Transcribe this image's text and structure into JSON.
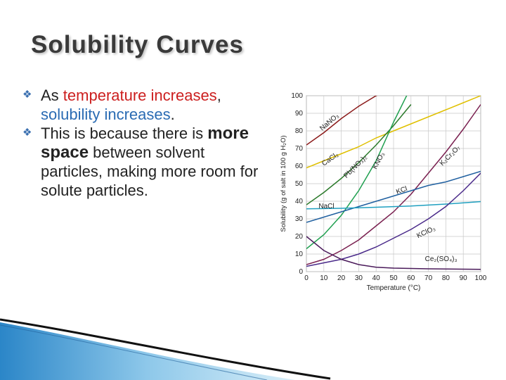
{
  "slide": {
    "title": "Solubility Curves",
    "bullets": [
      {
        "pre": "As ",
        "red": "temperature increases",
        "post": ",",
        "blue": "solubility increases",
        "end": "."
      },
      {
        "pre": "This is because there is ",
        "bold": "more space",
        "post": " between solvent particles, making more room for solute particles."
      }
    ],
    "accent_color": "#3a6fb0",
    "bullet_icon": "diamond-bullet-icon"
  },
  "chart_data": {
    "type": "line",
    "title": "",
    "xlabel": "Temperature (°C)",
    "ylabel": "Solubility (g of salt in 100 g H₂O)",
    "xlim": [
      0,
      100
    ],
    "ylim": [
      0,
      100
    ],
    "x_ticks": [
      0,
      10,
      20,
      30,
      40,
      50,
      60,
      70,
      80,
      90,
      100
    ],
    "y_ticks": [
      0,
      10,
      20,
      30,
      40,
      50,
      60,
      70,
      80,
      90,
      100
    ],
    "grid": true,
    "series": [
      {
        "name": "NaNO₃",
        "color": "#8b1a1a",
        "x": [
          0,
          10,
          20,
          30,
          40,
          50
        ],
        "y": [
          72,
          79,
          87,
          94,
          100,
          104
        ]
      },
      {
        "name": "CaCl₂",
        "color": "#e0c000",
        "x": [
          0,
          10,
          20,
          30,
          40,
          50,
          60,
          70,
          80,
          90,
          100
        ],
        "y": [
          59,
          63,
          67,
          71,
          76,
          80,
          84,
          88,
          92,
          96,
          100
        ]
      },
      {
        "name": "Pb(NO₃)₂",
        "color": "#2b7a2b",
        "x": [
          0,
          10,
          20,
          30,
          40,
          50,
          60
        ],
        "y": [
          38,
          45,
          53,
          62,
          72,
          83,
          95
        ]
      },
      {
        "name": "KNO₃",
        "color": "#20a050",
        "x": [
          0,
          10,
          20,
          30,
          40,
          50,
          60,
          70
        ],
        "y": [
          13,
          21,
          32,
          46,
          63,
          85,
          105,
          120
        ]
      },
      {
        "name": "K₂Cr₂O₇",
        "color": "#7a2050",
        "x": [
          0,
          10,
          20,
          30,
          40,
          50,
          60,
          70,
          80,
          90,
          100
        ],
        "y": [
          4,
          7,
          12,
          18,
          26,
          34,
          44,
          56,
          68,
          81,
          95
        ]
      },
      {
        "name": "KCl",
        "color": "#2060a0",
        "x": [
          0,
          10,
          20,
          30,
          40,
          50,
          60,
          70,
          80,
          90,
          100
        ],
        "y": [
          28,
          31,
          34,
          37,
          40,
          43,
          46,
          49,
          51,
          54,
          57
        ]
      },
      {
        "name": "NaCl",
        "color": "#20a0c0",
        "x": [
          0,
          20,
          40,
          60,
          80,
          100
        ],
        "y": [
          35.7,
          36,
          36.6,
          37.3,
          38.4,
          39.8
        ]
      },
      {
        "name": "KClO₃",
        "color": "#4a2a8a",
        "x": [
          0,
          10,
          20,
          30,
          40,
          50,
          60,
          70,
          80,
          90,
          100
        ],
        "y": [
          3,
          5,
          7,
          10,
          14,
          19,
          24,
          30,
          37,
          46,
          56
        ]
      },
      {
        "name": "Ce₂(SO₄)₃",
        "color": "#4a1a5a",
        "x": [
          0,
          10,
          20,
          30,
          40,
          50,
          60,
          70,
          80,
          90,
          100
        ],
        "y": [
          20,
          12,
          7,
          4,
          2.5,
          2,
          1.8,
          1.6,
          1.5,
          1.4,
          1.3
        ]
      }
    ],
    "annotations": [
      {
        "text": "NaNO₃",
        "series": "NaNO₃"
      },
      {
        "text": "CaCl₂",
        "series": "CaCl₂"
      },
      {
        "text": "Pb(NO₃)₂",
        "series": "Pb(NO₃)₂"
      },
      {
        "text": "KNO₃",
        "series": "KNO₃"
      },
      {
        "text": "K₂Cr₂O₇",
        "series": "K₂Cr₂O₇"
      },
      {
        "text": "KCl",
        "series": "KCl"
      },
      {
        "text": "NaCl",
        "series": "NaCl"
      },
      {
        "text": "KClO₃",
        "series": "KClO₃"
      },
      {
        "text": "Ce₂(SO₄)₃",
        "series": "Ce₂(SO₄)₃"
      }
    ]
  }
}
